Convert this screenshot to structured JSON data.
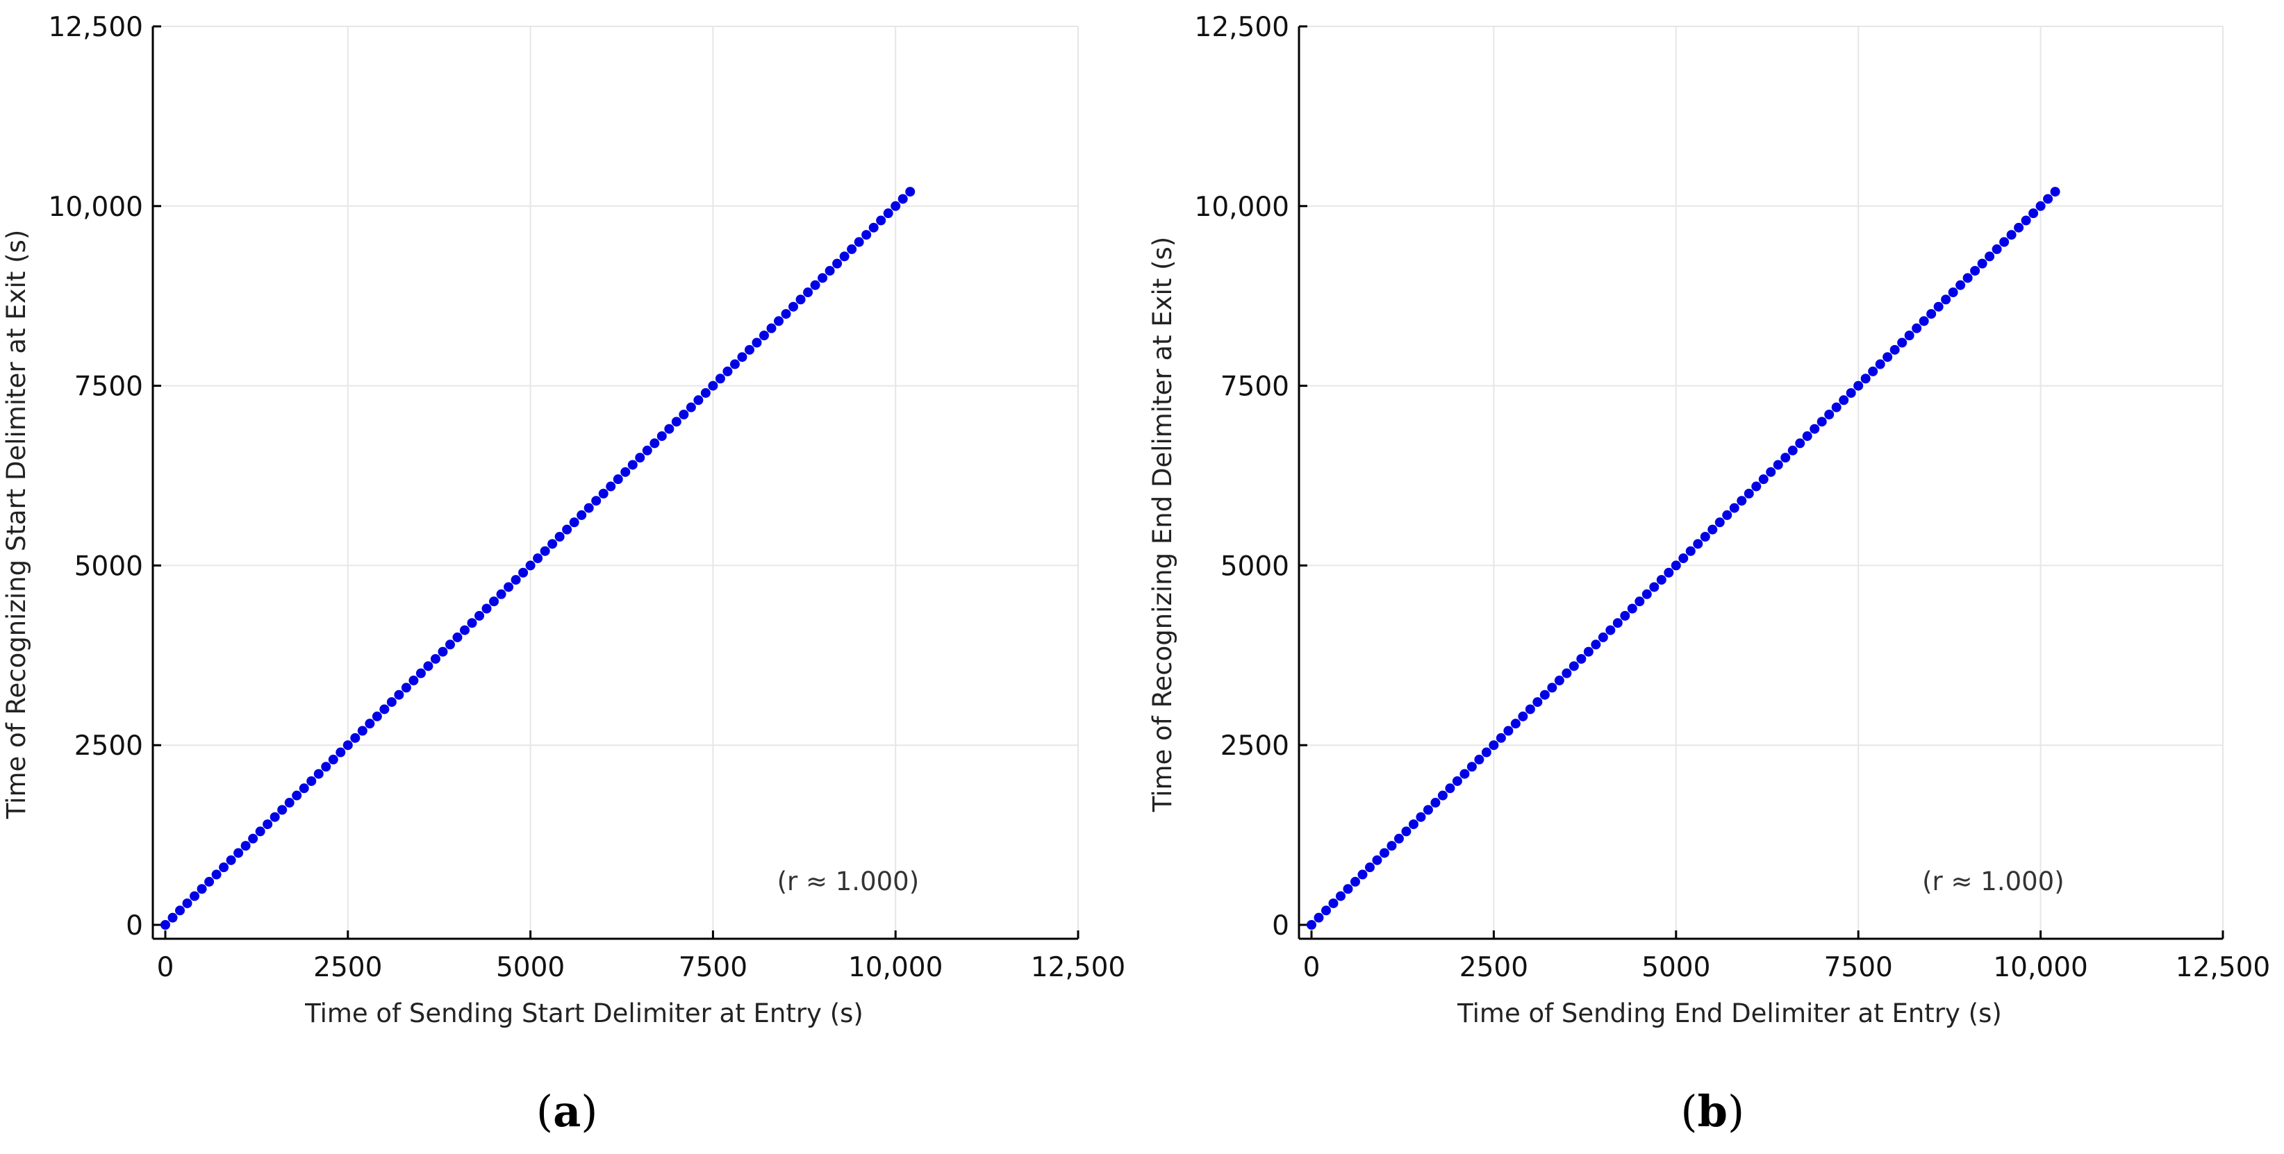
{
  "chart_data": [
    {
      "type": "scatter",
      "panel_label": "a",
      "xlabel": "Time of Sending Start Delimiter at Entry (s)",
      "ylabel": "Time of Recognizing Start Delimiter at Exit (s)",
      "xlim": [
        0,
        12500
      ],
      "ylim": [
        0,
        12500
      ],
      "xticks": [
        0,
        2500,
        5000,
        7500,
        10000,
        12500
      ],
      "yticks": [
        0,
        2500,
        5000,
        7500,
        10000,
        12500
      ],
      "xtick_labels": [
        "0",
        "2500",
        "5000",
        "7500",
        "10,000",
        "12,500"
      ],
      "ytick_labels": [
        "0",
        "2500",
        "5000",
        "7500",
        "10,000",
        "12,500"
      ],
      "grid": true,
      "legend": "none",
      "annotation": "(r ≈ 1.000)",
      "series": [
        {
          "color": "#0000e6",
          "x_start": 0,
          "x_end": 10150,
          "y_start": 0,
          "y_end": 10150,
          "x_step": 100
        }
      ]
    },
    {
      "type": "scatter",
      "panel_label": "b",
      "xlabel": "Time of Sending End Delimiter at Entry (s)",
      "ylabel": "Time of Recognizing End Delimiter at Exit (s)",
      "xlim": [
        0,
        12500
      ],
      "ylim": [
        0,
        12500
      ],
      "xticks": [
        0,
        2500,
        5000,
        7500,
        10000,
        12500
      ],
      "yticks": [
        0,
        2500,
        5000,
        7500,
        10000,
        12500
      ],
      "xtick_labels": [
        "0",
        "2500",
        "5000",
        "7500",
        "10,000",
        "12,500"
      ],
      "ytick_labels": [
        "0",
        "2500",
        "5000",
        "7500",
        "10,000",
        "12,500"
      ],
      "grid": true,
      "legend": "none",
      "annotation": "(r ≈ 1.000)",
      "series": [
        {
          "color": "#0000e6",
          "x_start": 0,
          "x_end": 10150,
          "y_start": 0,
          "y_end": 10150,
          "x_step": 100
        }
      ]
    }
  ]
}
